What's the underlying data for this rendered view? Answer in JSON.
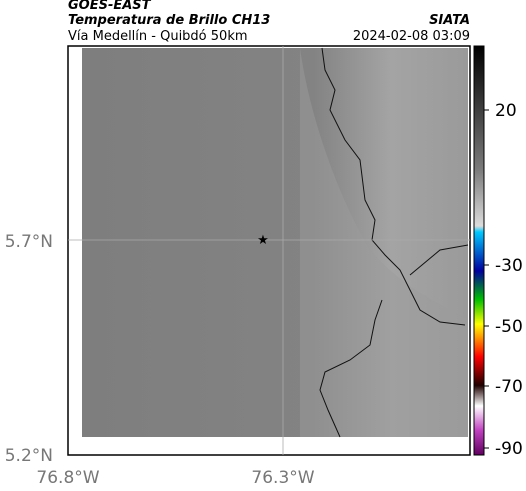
{
  "header": {
    "satellite": "GOES-EAST",
    "product": "Temperatura de Brillo CH13",
    "location": "Vía Medellín - Quibdó 50km",
    "source": "SIATA",
    "timestamp": "2024-02-08 03:09"
  },
  "map": {
    "lat_labels": [
      "5.7°N",
      "5.2°N"
    ],
    "lon_labels": [
      "76.8°W",
      "76.3°W"
    ]
  },
  "colorbar": {
    "ticks": [
      "20",
      "-30",
      "-50",
      "-70",
      "-90"
    ]
  }
}
